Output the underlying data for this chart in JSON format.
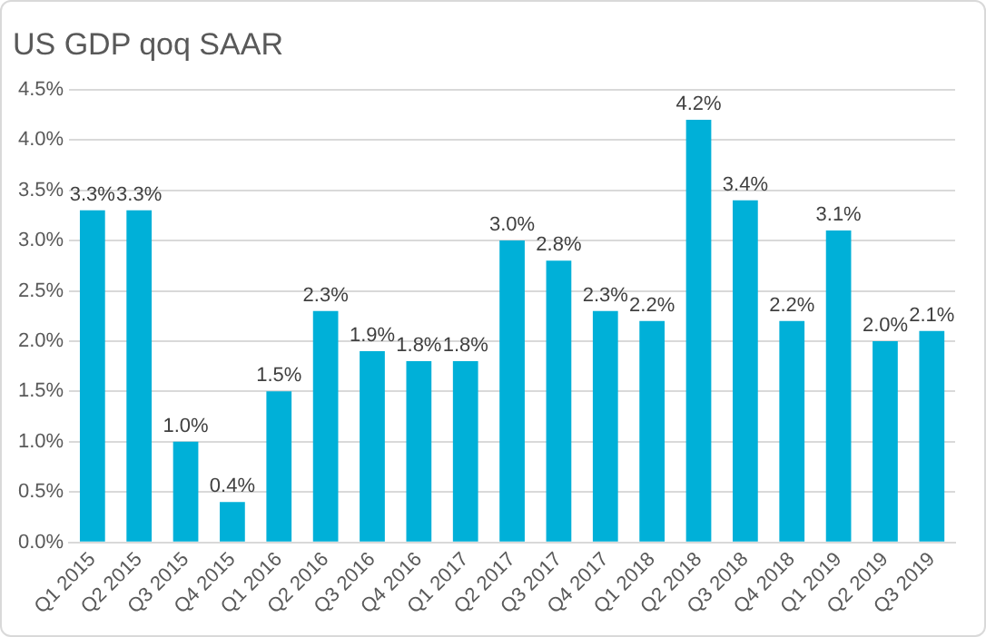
{
  "chart_data": {
    "type": "bar",
    "title": "US GDP qoq SAAR",
    "categories": [
      "Q1 2015",
      "Q2 2015",
      "Q3 2015",
      "Q4 2015",
      "Q1 2016",
      "Q2 2016",
      "Q3 2016",
      "Q4 2016",
      "Q1 2017",
      "Q2 2017",
      "Q3 2017",
      "Q4 2017",
      "Q1 2018",
      "Q2 2018",
      "Q3 2018",
      "Q4 2018",
      "Q1 2019",
      "Q2 2019",
      "Q3 2019"
    ],
    "values": [
      3.3,
      3.3,
      1.0,
      0.4,
      1.5,
      2.3,
      1.9,
      1.8,
      1.8,
      3.0,
      2.8,
      2.3,
      2.2,
      4.2,
      3.4,
      2.2,
      3.1,
      2.0,
      2.1
    ],
    "value_labels": [
      "3.3%",
      "3.3%",
      "1.0%",
      "0.4%",
      "1.5%",
      "2.3%",
      "1.9%",
      "1.8%",
      "1.8%",
      "3.0%",
      "2.8%",
      "2.3%",
      "2.2%",
      "4.2%",
      "3.4%",
      "2.2%",
      "3.1%",
      "2.0%",
      "2.1%"
    ],
    "color": "#00b0d8",
    "ylim": [
      0,
      4.5
    ],
    "yticks": [
      {
        "value": 0,
        "label": "0.0%"
      },
      {
        "value": 0.5,
        "label": "0.5%"
      },
      {
        "value": 1,
        "label": "1.0%"
      },
      {
        "value": 1.5,
        "label": "1.5%"
      },
      {
        "value": 2,
        "label": "2.0%"
      },
      {
        "value": 2.5,
        "label": "2.5%"
      },
      {
        "value": 3,
        "label": "3.0%"
      },
      {
        "value": 3.5,
        "label": "3.5%"
      },
      {
        "value": 4,
        "label": "4.0%"
      },
      {
        "value": 4.5,
        "label": "4.5%"
      }
    ],
    "grid": "y",
    "legend": false
  }
}
